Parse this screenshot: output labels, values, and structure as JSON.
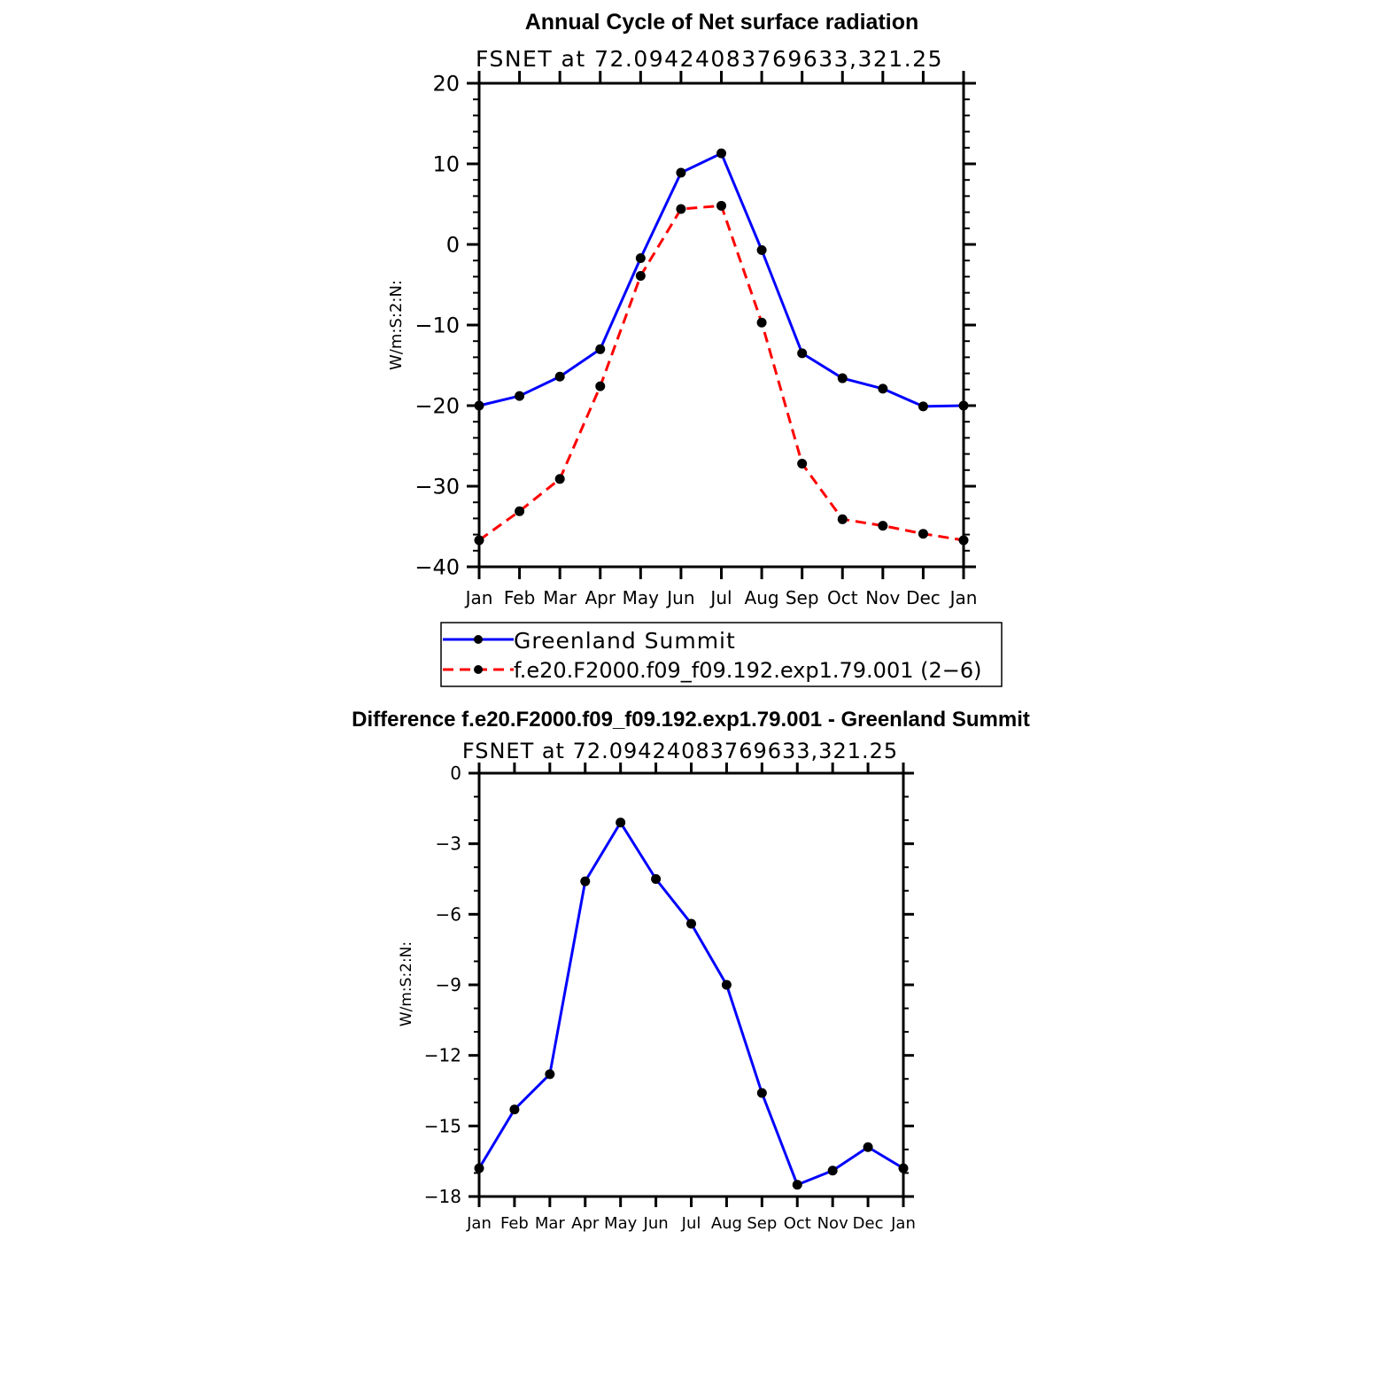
{
  "chart_data": [
    {
      "type": "line",
      "title": "Annual Cycle of Net surface radiation",
      "subtitle": "FSNET at 72.09424083769633,321.25",
      "ylabel": "W/m:S:2:N:",
      "xlabel": "",
      "ylim": [
        -40,
        20
      ],
      "yticks": [
        20,
        10,
        0,
        -10,
        -20,
        -30,
        -40
      ],
      "ytick_labels": [
        "20",
        "10",
        "0",
        "−10",
        "−20",
        "−30",
        "−40"
      ],
      "categories": [
        "Jan",
        "Feb",
        "Mar",
        "Apr",
        "May",
        "Jun",
        "Jul",
        "Aug",
        "Sep",
        "Oct",
        "Nov",
        "Dec",
        "Jan"
      ],
      "series": [
        {
          "name": "Greenland Summit",
          "color": "#0000ff",
          "dash": "solid",
          "values": [
            -20.0,
            -18.8,
            -16.4,
            -13.0,
            -1.7,
            8.9,
            11.3,
            -0.7,
            -13.5,
            -16.6,
            -17.9,
            -20.1,
            -20.0
          ]
        },
        {
          "name": "f.e20.F2000.f09_f09.192.exp1.79.001 (2−6)",
          "color": "#ff0000",
          "dash": "dashed",
          "values": [
            -36.7,
            -33.1,
            -29.1,
            -17.6,
            -3.9,
            4.4,
            4.8,
            -9.7,
            -27.2,
            -34.1,
            -34.9,
            -35.9,
            -36.7
          ]
        }
      ],
      "legend": "below"
    },
    {
      "type": "line",
      "title": "Difference f.e20.F2000.f09_f09.192.exp1.79.001 - Greenland Summit",
      "subtitle": "FSNET at 72.09424083769633,321.25",
      "ylabel": "W/m:S:2:N:",
      "xlabel": "",
      "ylim": [
        -18,
        0
      ],
      "yticks": [
        0,
        -3,
        -6,
        -9,
        -12,
        -15,
        -18
      ],
      "ytick_labels": [
        "0",
        "−3",
        "−6",
        "−9",
        "−12",
        "−15",
        "−18"
      ],
      "categories": [
        "Jan",
        "Feb",
        "Mar",
        "Apr",
        "May",
        "Jun",
        "Jul",
        "Aug",
        "Sep",
        "Oct",
        "Nov",
        "Dec",
        "Jan"
      ],
      "series": [
        {
          "name": "Difference",
          "color": "#0000ff",
          "dash": "solid",
          "values": [
            -16.8,
            -14.3,
            -12.8,
            -4.6,
            -2.1,
            -4.5,
            -6.4,
            -9.0,
            -13.6,
            -17.5,
            -16.9,
            -15.9,
            -16.8
          ]
        }
      ]
    }
  ]
}
